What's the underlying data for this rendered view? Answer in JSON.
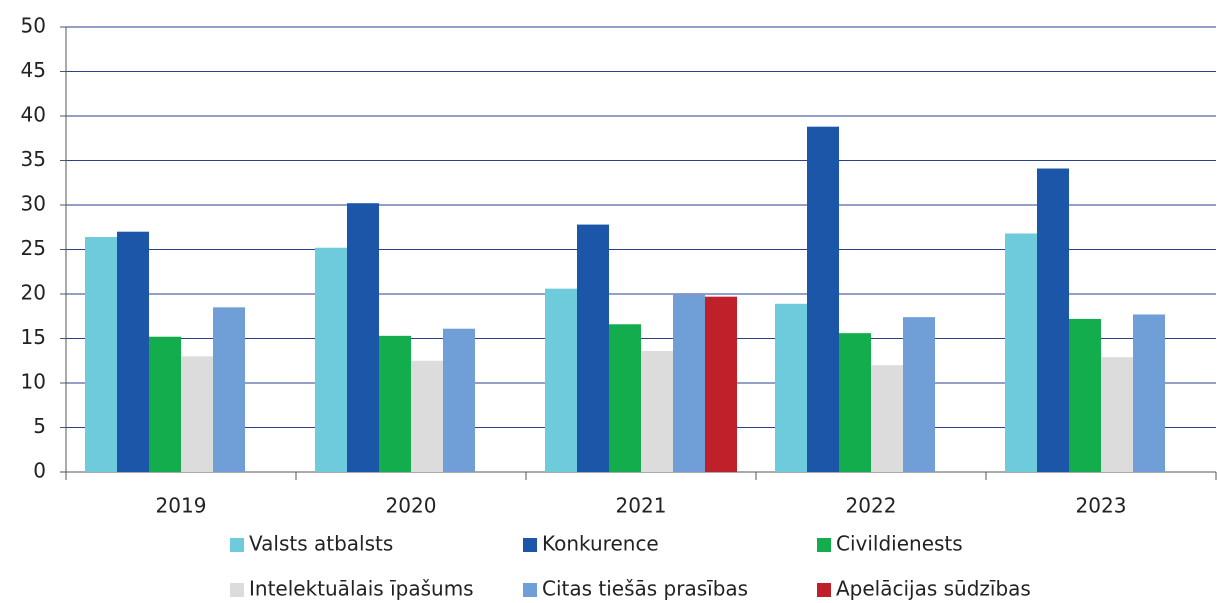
{
  "chart_data": {
    "type": "bar",
    "categories": [
      "2019",
      "2020",
      "2021",
      "2022",
      "2023"
    ],
    "series": [
      {
        "name": "Valsts atbalsts",
        "color": "#6dcbdc",
        "values": [
          26.4,
          25.2,
          20.6,
          18.9,
          26.8
        ]
      },
      {
        "name": "Konkurence",
        "color": "#1c56a8",
        "values": [
          27.0,
          30.2,
          27.8,
          38.8,
          34.1
        ]
      },
      {
        "name": "Civildienests",
        "color": "#14ad4d",
        "values": [
          15.2,
          15.3,
          16.6,
          15.6,
          17.2
        ]
      },
      {
        "name": "Intelektuālais īpašums",
        "color": "#dcdcdc",
        "values": [
          13.0,
          12.5,
          13.6,
          12.0,
          12.9
        ]
      },
      {
        "name": "Citas tiešās prasības",
        "color": "#6f9fd6",
        "values": [
          18.5,
          16.1,
          19.9,
          17.4,
          17.7
        ]
      },
      {
        "name": "Apelācijas sūdzības",
        "color": "#c0202a",
        "values": [
          null,
          null,
          19.7,
          null,
          null
        ]
      }
    ],
    "ylim": [
      0,
      50
    ],
    "yticks": [
      0,
      5,
      10,
      15,
      20,
      25,
      30,
      35,
      40,
      45,
      50
    ],
    "grid": true
  }
}
